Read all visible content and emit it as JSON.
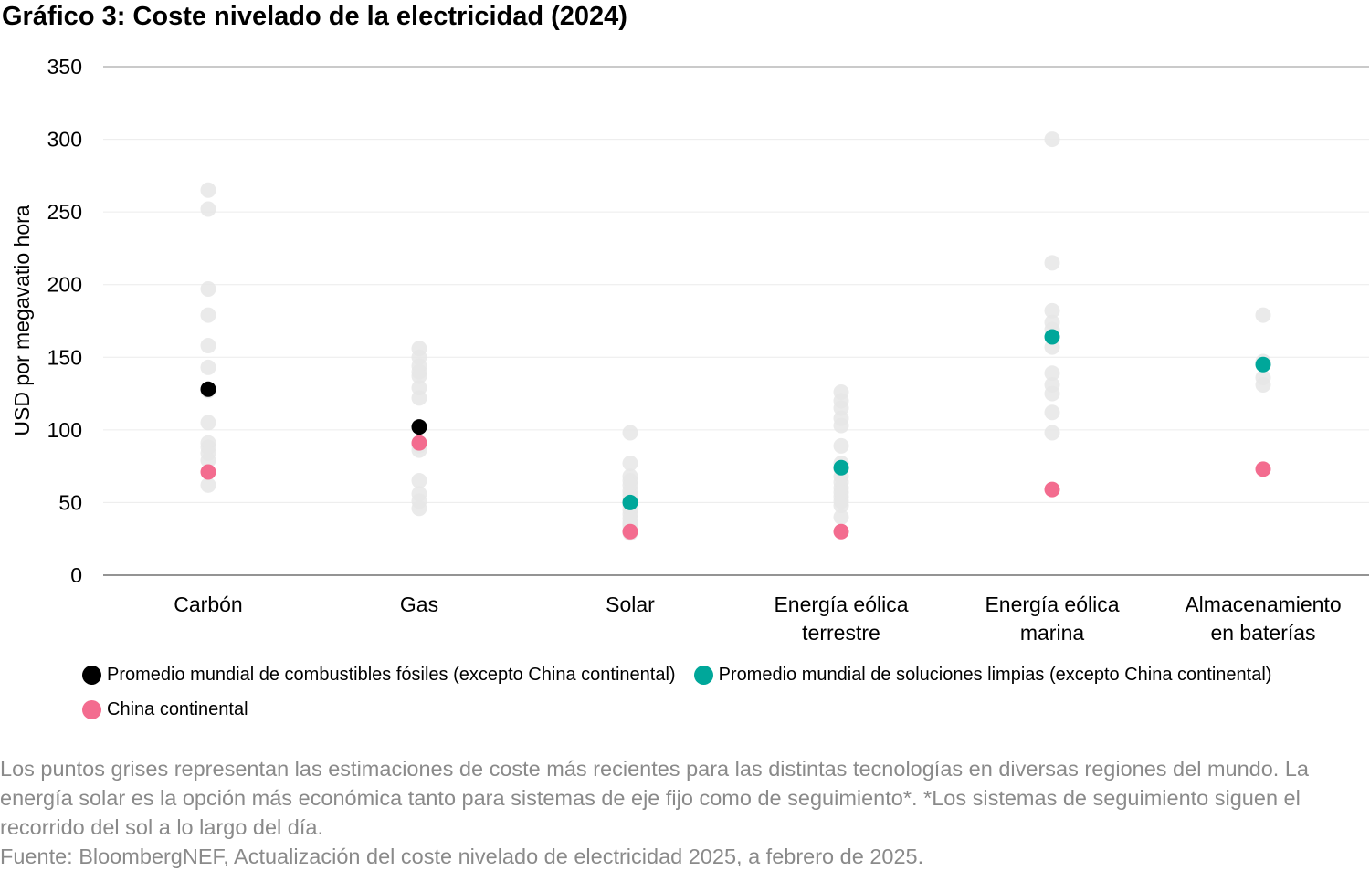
{
  "title": "Gráfico 3: Coste nivelado de la electricidad (2024)",
  "chart_data": {
    "type": "scatter",
    "ylabel": "USD por megavatio hora",
    "xlabel": "",
    "ylim": [
      0,
      350
    ],
    "yticks": [
      "0",
      "50",
      "100",
      "150",
      "200",
      "250",
      "300",
      "350"
    ],
    "grid": true,
    "legend_position": "bottom",
    "categories": [
      [
        "Carbón"
      ],
      [
        "Gas"
      ],
      [
        "Solar"
      ],
      [
        "Energía eólica",
        "terrestre"
      ],
      [
        "Energía eólica",
        "marina"
      ],
      [
        "Almacenamiento",
        "en baterías"
      ]
    ],
    "regional_estimates": [
      [
        265,
        252,
        197,
        179,
        158,
        143,
        127,
        105,
        91,
        88,
        84,
        79,
        62
      ],
      [
        156,
        150,
        144,
        140,
        137,
        129,
        122,
        89,
        86,
        65,
        56,
        51,
        46
      ],
      [
        98,
        77,
        68,
        65,
        62,
        58,
        55,
        52,
        48,
        45,
        42,
        39,
        36,
        34,
        31,
        29
      ],
      [
        126,
        120,
        115,
        108,
        103,
        89,
        77,
        73,
        68,
        64,
        60,
        57,
        54,
        51,
        48,
        40
      ],
      [
        300,
        215,
        182,
        174,
        169,
        157,
        139,
        131,
        125,
        112,
        98
      ],
      [
        179,
        147,
        136,
        131
      ]
    ],
    "series": [
      {
        "name": "Promedio mundial de combustibles fósiles (excepto China continental)",
        "color": "#000000",
        "values": [
          128,
          102,
          null,
          null,
          null,
          null
        ]
      },
      {
        "name": "Promedio mundial de soluciones limpias (excepto China continental)",
        "color": "#00a79a",
        "values": [
          null,
          null,
          50,
          74,
          164,
          145
        ]
      },
      {
        "name": "China continental",
        "color": "#f36c8f",
        "values": [
          71,
          91,
          30,
          30,
          59,
          73
        ]
      }
    ],
    "estimate_color": "#e6e6e6"
  },
  "note": {
    "description": "Los puntos grises representan las estimaciones de coste más recientes para las distintas tecnologías en diversas regiones del mundo. La energía solar es la opción más económica tanto para sistemas de eje fijo como de seguimiento*. *Los sistemas de seguimiento siguen el recorrido del sol a lo largo del día.",
    "source": "Fuente: BloombergNEF, Actualización del coste nivelado de electricidad 2025, a febrero de 2025."
  }
}
